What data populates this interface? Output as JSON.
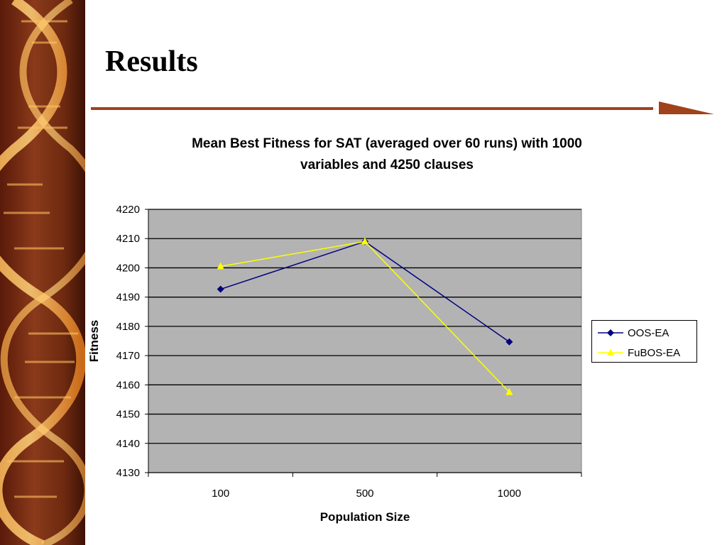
{
  "slide": {
    "title": "Results"
  },
  "chart_data": {
    "type": "line",
    "title": "Mean Best Fitness for SAT (averaged over 60 runs) with 1000 variables and 4250 clauses",
    "title_lines": [
      "Mean Best Fitness for SAT (averaged over 60 runs) with 1000",
      "variables and 4250 clauses"
    ],
    "xlabel": "Population Size",
    "ylabel": "Fitness",
    "categories": [
      "100",
      "500",
      "1000"
    ],
    "ylim": [
      4130,
      4220
    ],
    "yticks": [
      4130,
      4140,
      4150,
      4160,
      4170,
      4180,
      4190,
      4200,
      4210,
      4220
    ],
    "grid": true,
    "legend_position": "right",
    "plot_background": "#b3b3b3",
    "series": [
      {
        "name": "OOS-EA",
        "values": [
          4192.7,
          4209,
          4174.7
        ],
        "color": "#00007f",
        "marker": "diamond"
      },
      {
        "name": "FuBOS-EA",
        "values": [
          4200.5,
          4209,
          4157.5
        ],
        "color": "#ffff00",
        "marker": "triangle"
      }
    ]
  },
  "colors": {
    "accent_rule": "#a0421c"
  }
}
